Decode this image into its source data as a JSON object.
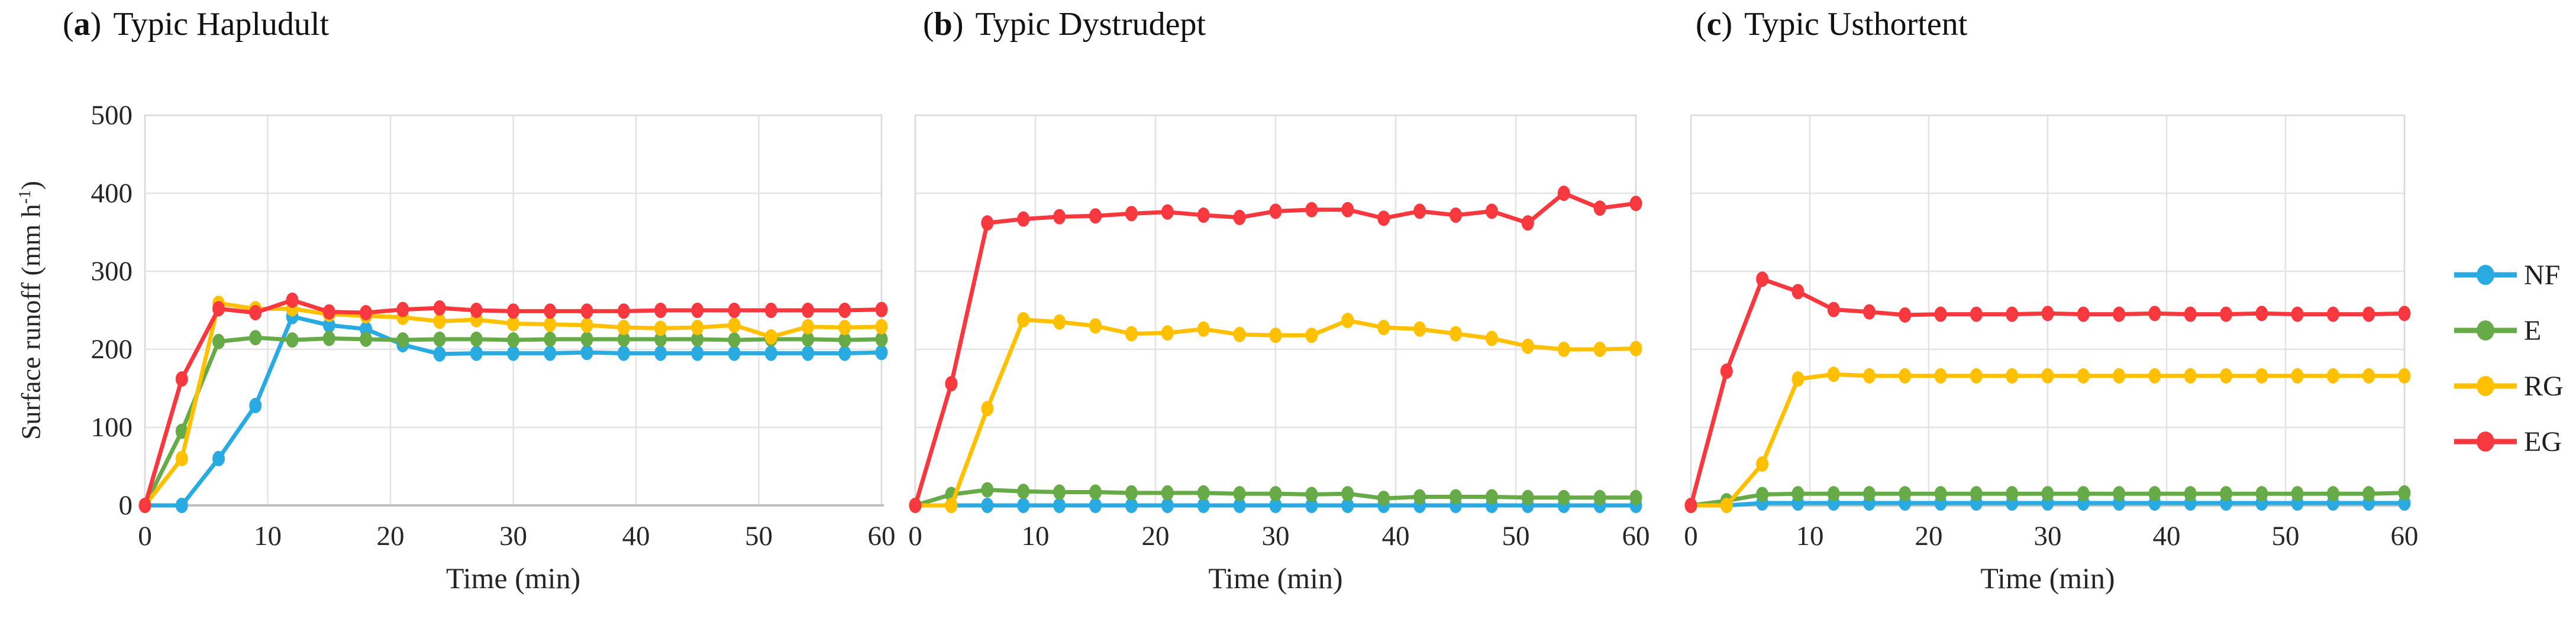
{
  "panel": {
    "open": "(",
    "close": ")"
  },
  "axes": {
    "y_ticks": [
      "500",
      "400",
      "300",
      "200",
      "100",
      "0"
    ],
    "y_title_main": "Surface runoff (mm h",
    "y_title_sup": "-1",
    "y_title_close": ")",
    "x_title": "Time (min)"
  },
  "legend": {
    "items": [
      {
        "label": "NF",
        "color": "#29ABE2"
      },
      {
        "label": "E",
        "color": "#67AB49"
      },
      {
        "label": "RG",
        "color": "#FFC000"
      },
      {
        "label": "EG",
        "color": "#F8383F"
      }
    ]
  },
  "chart_data": [
    {
      "type": "line",
      "panel_letter": "a",
      "title": "Typic Hapludult",
      "xlabel": "Time (min)",
      "ylabel": "Surface runoff (mm h-1)",
      "xlim": [
        0,
        60
      ],
      "ylim": [
        0,
        500
      ],
      "x_ticks": [
        0,
        10,
        20,
        30,
        40,
        50,
        60
      ],
      "grid": true,
      "legend_position": "right-of-figure",
      "x": [
        0,
        3,
        6,
        9,
        12,
        15,
        18,
        21,
        24,
        27,
        30,
        33,
        36,
        39,
        42,
        45,
        48,
        51,
        54,
        57,
        60
      ],
      "series": [
        {
          "name": "NF",
          "color": "#29ABE2",
          "values": [
            0,
            0,
            60,
            128,
            242,
            231,
            226,
            206,
            194,
            195,
            195,
            195,
            196,
            195,
            195,
            195,
            195,
            195,
            195,
            195,
            196
          ]
        },
        {
          "name": "E",
          "color": "#67AB49",
          "values": [
            0,
            95,
            210,
            215,
            212,
            214,
            213,
            212,
            213,
            213,
            212,
            213,
            213,
            213,
            213,
            213,
            212,
            213,
            213,
            212,
            213
          ]
        },
        {
          "name": "RG",
          "color": "#FFC000",
          "values": [
            0,
            60,
            259,
            252,
            252,
            245,
            243,
            241,
            236,
            238,
            233,
            232,
            231,
            228,
            227,
            228,
            231,
            216,
            229,
            228,
            229
          ]
        },
        {
          "name": "EG",
          "color": "#F8383F",
          "values": [
            0,
            162,
            252,
            247,
            263,
            248,
            247,
            251,
            253,
            250,
            249,
            249,
            249,
            249,
            250,
            250,
            250,
            250,
            250,
            250,
            251
          ]
        }
      ]
    },
    {
      "type": "line",
      "panel_letter": "b",
      "title": "Typic Dystrudept",
      "xlabel": "Time (min)",
      "ylabel": "Surface runoff (mm h-1)",
      "xlim": [
        0,
        60
      ],
      "ylim": [
        0,
        500
      ],
      "x_ticks": [
        0,
        10,
        20,
        30,
        40,
        50,
        60
      ],
      "grid": true,
      "legend_position": "right-of-figure",
      "x": [
        0,
        3,
        6,
        9,
        12,
        15,
        18,
        21,
        24,
        27,
        30,
        33,
        36,
        39,
        42,
        45,
        48,
        51,
        54,
        57,
        60
      ],
      "series": [
        {
          "name": "NF",
          "color": "#29ABE2",
          "values": [
            0,
            0,
            0,
            0,
            0,
            0,
            0,
            0,
            0,
            0,
            0,
            0,
            0,
            0,
            0,
            0,
            0,
            0,
            0,
            0,
            0
          ]
        },
        {
          "name": "E",
          "color": "#67AB49",
          "values": [
            0,
            14,
            20,
            18,
            17,
            17,
            16,
            16,
            16,
            15,
            15,
            14,
            15,
            9,
            11,
            11,
            11,
            10,
            10,
            10,
            10
          ]
        },
        {
          "name": "RG",
          "color": "#FFC000",
          "values": [
            0,
            0,
            124,
            238,
            235,
            230,
            220,
            221,
            226,
            219,
            218,
            218,
            237,
            228,
            226,
            220,
            214,
            204,
            200,
            200,
            201
          ]
        },
        {
          "name": "EG",
          "color": "#F8383F",
          "values": [
            0,
            156,
            362,
            367,
            370,
            371,
            374,
            376,
            372,
            369,
            377,
            379,
            379,
            368,
            377,
            372,
            377,
            362,
            400,
            381,
            387
          ]
        }
      ]
    },
    {
      "type": "line",
      "panel_letter": "c",
      "title": "Typic Usthortent",
      "xlabel": "Time (min)",
      "ylabel": "Surface runoff (mm h-1)",
      "xlim": [
        0,
        60
      ],
      "ylim": [
        0,
        500
      ],
      "x_ticks": [
        0,
        10,
        20,
        30,
        40,
        50,
        60
      ],
      "grid": true,
      "legend_position": "right-of-figure",
      "x": [
        0,
        3,
        6,
        9,
        12,
        15,
        18,
        21,
        24,
        27,
        30,
        33,
        36,
        39,
        42,
        45,
        48,
        51,
        54,
        57,
        60
      ],
      "series": [
        {
          "name": "NF",
          "color": "#29ABE2",
          "values": [
            0,
            0,
            3,
            3,
            3,
            3,
            3,
            3,
            3,
            3,
            3,
            3,
            3,
            3,
            3,
            3,
            3,
            3,
            3,
            3,
            3
          ]
        },
        {
          "name": "E",
          "color": "#67AB49",
          "values": [
            0,
            6,
            14,
            15,
            15,
            15,
            15,
            15,
            15,
            15,
            15,
            15,
            15,
            15,
            15,
            15,
            15,
            15,
            15,
            15,
            16
          ]
        },
        {
          "name": "RG",
          "color": "#FFC000",
          "values": [
            0,
            0,
            53,
            162,
            168,
            166,
            166,
            166,
            166,
            166,
            166,
            166,
            166,
            166,
            166,
            166,
            166,
            166,
            166,
            166,
            166
          ]
        },
        {
          "name": "EG",
          "color": "#F8383F",
          "values": [
            0,
            172,
            290,
            274,
            251,
            248,
            244,
            245,
            245,
            245,
            246,
            245,
            245,
            246,
            245,
            245,
            246,
            245,
            245,
            245,
            246
          ]
        }
      ]
    }
  ]
}
